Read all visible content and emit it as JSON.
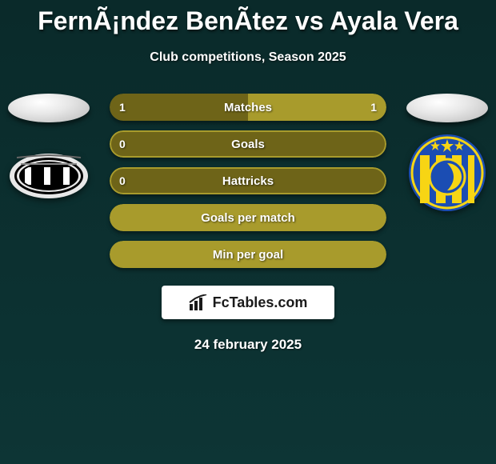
{
  "title": "FernÃ¡ndez BenÃ­tez vs Ayala Vera",
  "subtitle": "Club competitions, Season 2025",
  "date": "24 february 2025",
  "brand": "FcTables.com",
  "colors": {
    "bar_dark": "#6e6418",
    "bar_light": "#a89b2c",
    "bar_full": "#a89b2c",
    "bg_top": "#0a2a2a",
    "bg_bottom": "#0d3535"
  },
  "left_club": {
    "name": "Libertad",
    "logo_bg": "#000000",
    "logo_stripe": "#ffffff"
  },
  "right_club": {
    "name": "Sportivo Luqueño",
    "logo_primary": "#1b4db3",
    "logo_secondary": "#f7d514"
  },
  "bars": [
    {
      "label": "Matches",
      "left_val": "1",
      "right_val": "1",
      "left_pct": 50,
      "right_pct": 50,
      "show_vals": true
    },
    {
      "label": "Goals",
      "left_val": "0",
      "right_val": "",
      "left_pct": 100,
      "right_pct": 0,
      "show_vals": true,
      "single": true
    },
    {
      "label": "Hattricks",
      "left_val": "0",
      "right_val": "",
      "left_pct": 100,
      "right_pct": 0,
      "show_vals": true,
      "single": true
    },
    {
      "label": "Goals per match",
      "left_val": "",
      "right_val": "",
      "left_pct": 100,
      "right_pct": 0,
      "show_vals": false,
      "single": true,
      "full": true
    },
    {
      "label": "Min per goal",
      "left_val": "",
      "right_val": "",
      "left_pct": 100,
      "right_pct": 0,
      "show_vals": false,
      "single": true,
      "full": true
    }
  ]
}
